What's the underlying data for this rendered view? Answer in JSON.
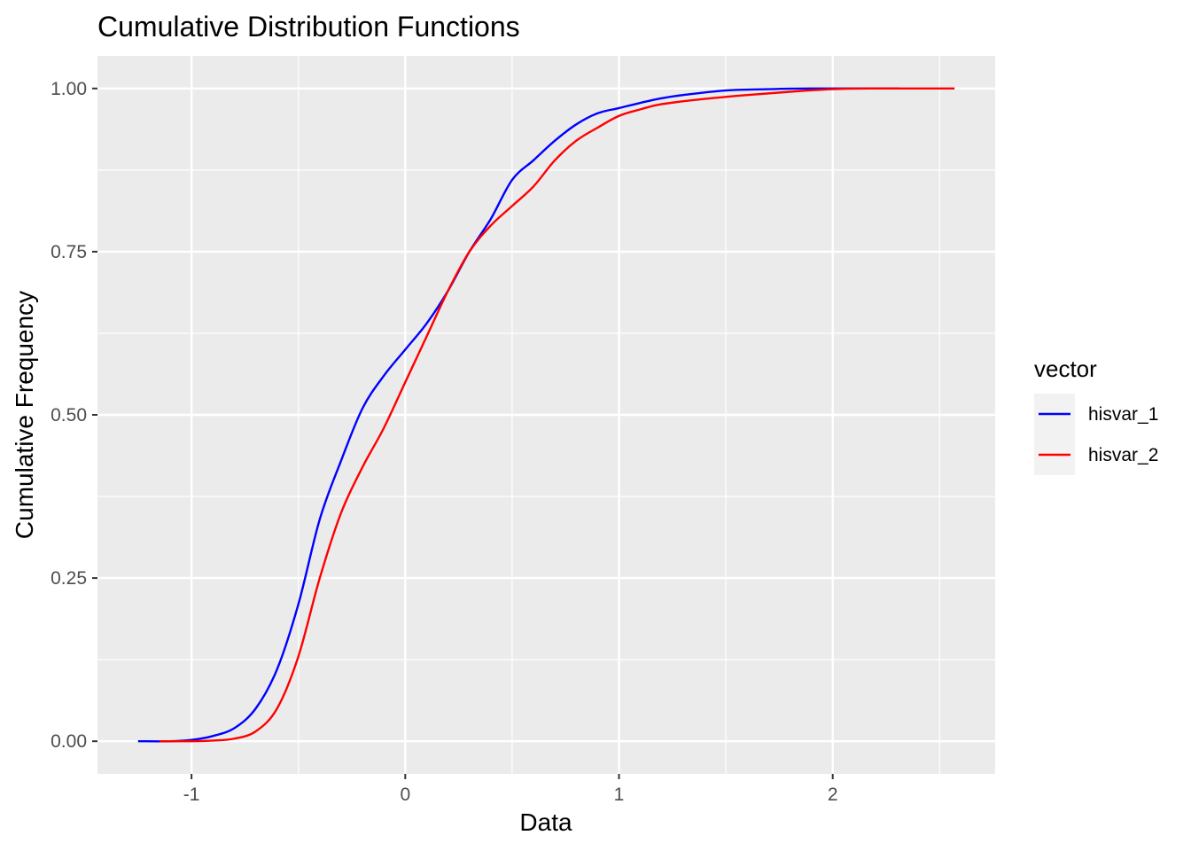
{
  "chart_data": {
    "type": "line",
    "title": "Cumulative Distribution Functions",
    "xlabel": "Data",
    "ylabel": "Cumulative Frequency",
    "xlim": [
      -1.44,
      2.76
    ],
    "ylim": [
      -0.05,
      1.05
    ],
    "x_ticks": [
      -1,
      0,
      1,
      2
    ],
    "x_tick_labels": [
      "-1",
      "0",
      "1",
      "2"
    ],
    "y_ticks": [
      0,
      0.25,
      0.5,
      0.75,
      1
    ],
    "y_tick_labels": [
      "0.00",
      "0.25",
      "0.50",
      "0.75",
      "1.00"
    ],
    "grid": true,
    "legend": {
      "title": "vector",
      "position": "right"
    },
    "series": [
      {
        "name": "hisvar_1",
        "color": "#0000ff",
        "points": [
          [
            -1.25,
            0.0
          ],
          [
            -1.1,
            0.0
          ],
          [
            -1.0,
            0.002
          ],
          [
            -0.9,
            0.008
          ],
          [
            -0.8,
            0.02
          ],
          [
            -0.7,
            0.05
          ],
          [
            -0.6,
            0.11
          ],
          [
            -0.5,
            0.21
          ],
          [
            -0.4,
            0.34
          ],
          [
            -0.3,
            0.43
          ],
          [
            -0.2,
            0.51
          ],
          [
            -0.1,
            0.56
          ],
          [
            0.0,
            0.6
          ],
          [
            0.1,
            0.64
          ],
          [
            0.2,
            0.69
          ],
          [
            0.3,
            0.75
          ],
          [
            0.4,
            0.8
          ],
          [
            0.5,
            0.86
          ],
          [
            0.6,
            0.89
          ],
          [
            0.7,
            0.92
          ],
          [
            0.8,
            0.945
          ],
          [
            0.9,
            0.962
          ],
          [
            1.0,
            0.97
          ],
          [
            1.1,
            0.978
          ],
          [
            1.2,
            0.985
          ],
          [
            1.3,
            0.99
          ],
          [
            1.5,
            0.997
          ],
          [
            1.7,
            0.999
          ],
          [
            1.9,
            1.0
          ],
          [
            2.31,
            1.0
          ]
        ]
      },
      {
        "name": "hisvar_2",
        "color": "#ff0000",
        "points": [
          [
            -1.15,
            0.0
          ],
          [
            -1.0,
            0.0
          ],
          [
            -0.9,
            0.001
          ],
          [
            -0.8,
            0.004
          ],
          [
            -0.7,
            0.015
          ],
          [
            -0.6,
            0.05
          ],
          [
            -0.5,
            0.13
          ],
          [
            -0.4,
            0.25
          ],
          [
            -0.3,
            0.35
          ],
          [
            -0.2,
            0.42
          ],
          [
            -0.1,
            0.48
          ],
          [
            0.0,
            0.55
          ],
          [
            0.1,
            0.62
          ],
          [
            0.2,
            0.69
          ],
          [
            0.3,
            0.75
          ],
          [
            0.4,
            0.79
          ],
          [
            0.5,
            0.82
          ],
          [
            0.6,
            0.85
          ],
          [
            0.7,
            0.89
          ],
          [
            0.8,
            0.92
          ],
          [
            0.9,
            0.94
          ],
          [
            1.0,
            0.958
          ],
          [
            1.1,
            0.968
          ],
          [
            1.2,
            0.976
          ],
          [
            1.4,
            0.984
          ],
          [
            1.6,
            0.99
          ],
          [
            1.8,
            0.995
          ],
          [
            2.0,
            0.999
          ],
          [
            2.2,
            1.0
          ],
          [
            2.57,
            1.0
          ]
        ]
      }
    ]
  }
}
